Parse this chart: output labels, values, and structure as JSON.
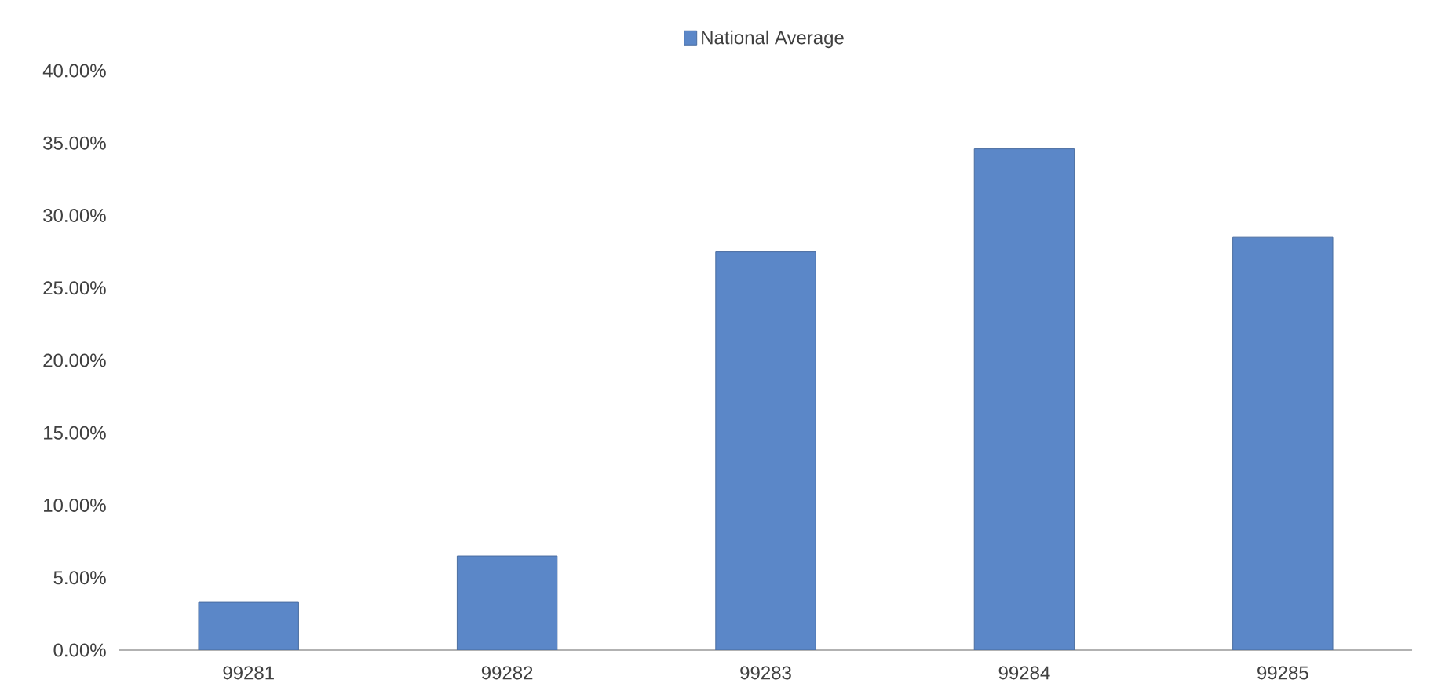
{
  "chart_data": {
    "type": "bar",
    "categories": [
      "99281",
      "99282",
      "99283",
      "99284",
      "99285"
    ],
    "series": [
      {
        "name": "National Average",
        "color": "#5b87c8",
        "values": [
          3.3,
          6.5,
          27.5,
          34.6,
          28.5
        ]
      }
    ],
    "ylim": [
      0,
      40
    ],
    "yticks": [
      {
        "value": 0,
        "label": "0.00%"
      },
      {
        "value": 5,
        "label": "5.00%"
      },
      {
        "value": 10,
        "label": "10.00%"
      },
      {
        "value": 15,
        "label": "15.00%"
      },
      {
        "value": 20,
        "label": "20.00%"
      },
      {
        "value": 25,
        "label": "25.00%"
      },
      {
        "value": 30,
        "label": "30.00%"
      },
      {
        "value": 35,
        "label": "35.00%"
      },
      {
        "value": 40,
        "label": "40.00%"
      }
    ],
    "grid": false,
    "legend": "top"
  }
}
